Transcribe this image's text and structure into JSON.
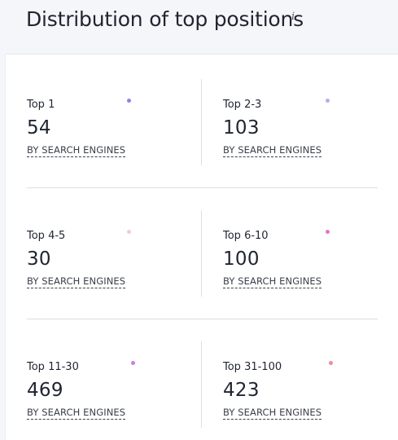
{
  "widget": {
    "title": "Distribution of top positions",
    "info_icon": "i"
  },
  "cells": [
    {
      "label": "Top 1",
      "value": "54",
      "link": "BY SEARCH ENGINES",
      "color": "#8a87e6"
    },
    {
      "label": "Top 2-3",
      "value": "103",
      "link": "BY SEARCH ENGINES",
      "color": "#b2aef0"
    },
    {
      "label": "Top 4-5",
      "value": "30",
      "link": "BY SEARCH ENGINES",
      "color": "#f6c9d6"
    },
    {
      "label": "Top 6-10",
      "value": "100",
      "link": "BY SEARCH ENGINES",
      "color": "#e476bd"
    },
    {
      "label": "Top 11-30",
      "value": "469",
      "link": "BY SEARCH ENGINES",
      "color": "#c77ee0"
    },
    {
      "label": "Top 31-100",
      "value": "423",
      "link": "BY SEARCH ENGINES",
      "color": "#f28a97"
    }
  ]
}
